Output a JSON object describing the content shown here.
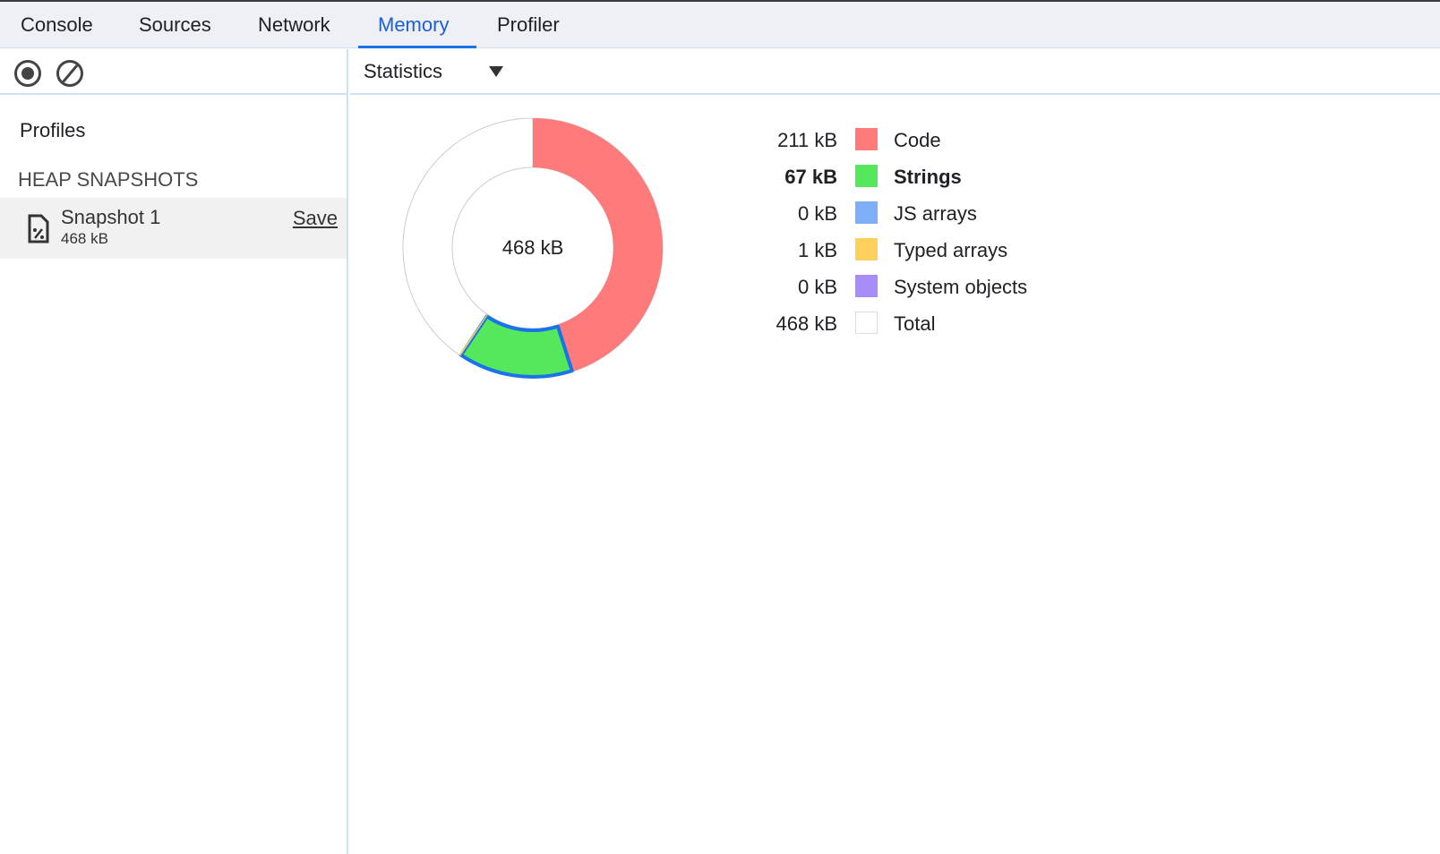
{
  "tabs": [
    {
      "label": "Console"
    },
    {
      "label": "Sources"
    },
    {
      "label": "Network"
    },
    {
      "label": "Memory",
      "active": true
    },
    {
      "label": "Profiler"
    }
  ],
  "sidebar": {
    "profiles_label": "Profiles",
    "section_label": "HEAP SNAPSHOTS",
    "snapshot": {
      "name": "Snapshot 1",
      "size": "468 kB",
      "save_label": "Save"
    }
  },
  "view_select": {
    "selected": "Statistics"
  },
  "chart_data": {
    "type": "pie",
    "center_label": "468 kB",
    "highlighted": "Strings",
    "accent": "#1a73e8",
    "series": [
      {
        "name": "Code",
        "label": "211 kB",
        "value": 211,
        "color": "#ff7b7b"
      },
      {
        "name": "Strings",
        "label": "67 kB",
        "value": 67,
        "color": "#55e85c"
      },
      {
        "name": "JS arrays",
        "label": "0 kB",
        "value": 0,
        "color": "#7eaef8"
      },
      {
        "name": "Typed arrays",
        "label": "1 kB",
        "value": 1,
        "color": "#ffd05e"
      },
      {
        "name": "System objects",
        "label": "0 kB",
        "value": 0,
        "color": "#a88cf7"
      }
    ],
    "total": {
      "name": "Total",
      "label": "468 kB",
      "value": 468,
      "color": "#ffffff"
    }
  }
}
